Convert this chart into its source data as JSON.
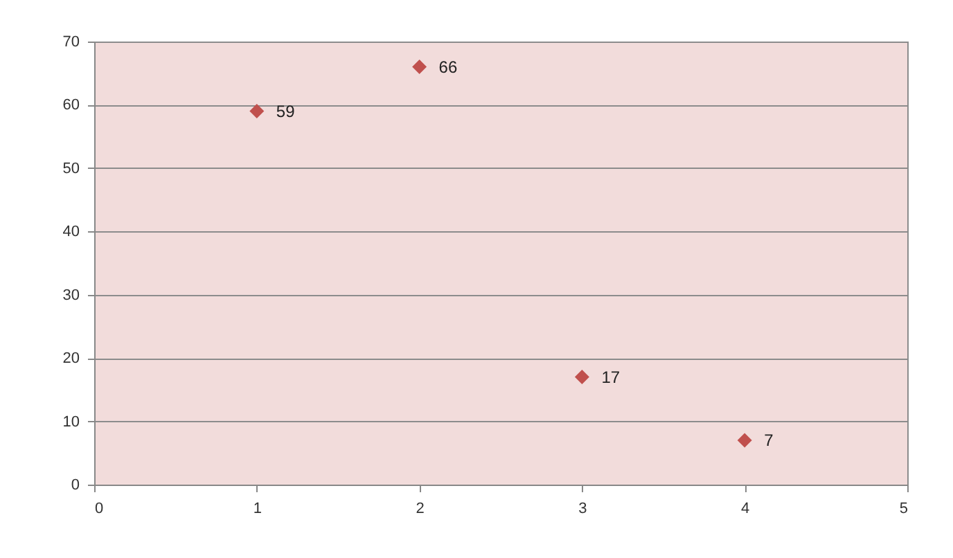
{
  "chart_data": {
    "type": "scatter",
    "x": [
      1,
      2,
      3,
      4
    ],
    "values": [
      59,
      66,
      17,
      7
    ],
    "color": "#c0504d",
    "marker": "diamond",
    "data_labels": true,
    "grid": "y",
    "xlim": [
      0,
      5
    ],
    "xticks": [
      0,
      1,
      2,
      3,
      4,
      5
    ],
    "ylim": [
      0,
      70
    ],
    "yticks": [
      0,
      10,
      20,
      30,
      40,
      50,
      60,
      70
    ]
  }
}
